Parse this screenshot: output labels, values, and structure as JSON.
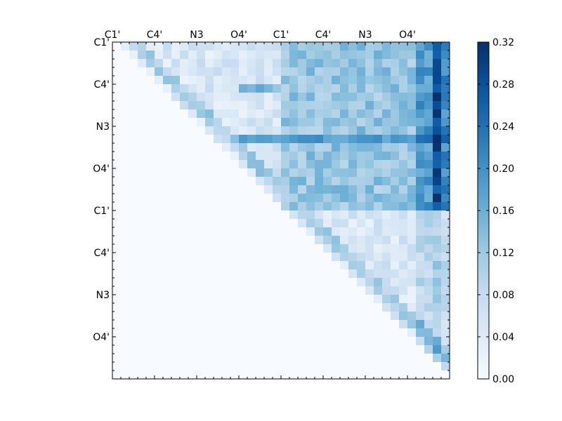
{
  "chart_data": {
    "type": "heatmap",
    "title": "",
    "xlabel": "",
    "ylabel": "",
    "size": 40,
    "tick_labels": [
      "C1'",
      "C4'",
      "N3",
      "O4'",
      "C1'",
      "C4'",
      "N3",
      "O4'"
    ],
    "tick_every": 5,
    "colorbar": {
      "min": 0.0,
      "max": 0.32,
      "ticks": [
        "0.32",
        "0.28",
        "0.24",
        "0.20",
        "0.16",
        "0.12",
        "0.08",
        "0.04",
        "0.00"
      ]
    },
    "colormap": [
      "#f7fbff",
      "#deebf7",
      "#c6dbef",
      "#9ecae1",
      "#6baed6",
      "#4292c6",
      "#2171b5",
      "#08519c",
      "#08306b"
    ],
    "grid": false,
    "legend": "colorbar-right"
  }
}
